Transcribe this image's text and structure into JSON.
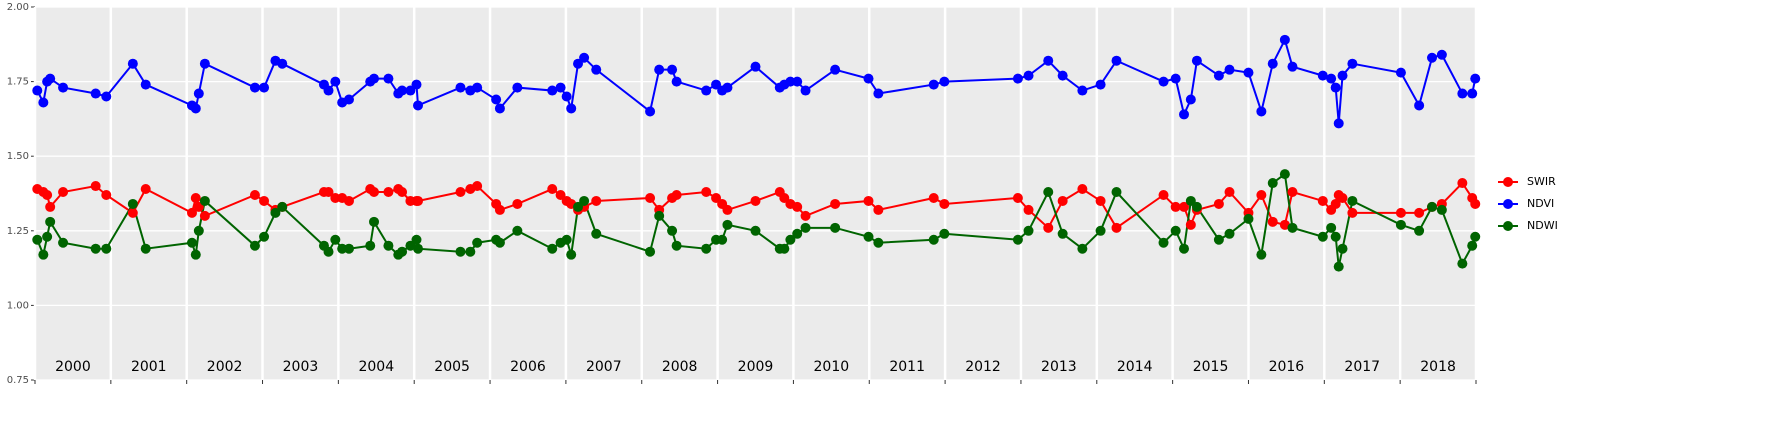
{
  "chart_data": {
    "type": "line",
    "x": [
      2000.03,
      2000.11,
      2000.16,
      2000.2,
      2000.37,
      2000.8,
      2000.94,
      2001.29,
      2001.46,
      2002.07,
      2002.12,
      2002.16,
      2002.24,
      2002.9,
      2003.02,
      2003.17,
      2003.26,
      2003.81,
      2003.87,
      2003.96,
      2004.05,
      2004.14,
      2004.42,
      2004.47,
      2004.66,
      2004.79,
      2004.84,
      2004.95,
      2005.03,
      2005.05,
      2005.61,
      2005.74,
      2005.83,
      2006.08,
      2006.13,
      2006.36,
      2006.82,
      2006.93,
      2007.01,
      2007.07,
      2007.16,
      2007.24,
      2007.4,
      2008.11,
      2008.23,
      2008.4,
      2008.46,
      2008.85,
      2008.98,
      2009.06,
      2009.13,
      2009.5,
      2009.82,
      2009.88,
      2009.96,
      2010.05,
      2010.16,
      2010.55,
      2010.99,
      2011.12,
      2011.85,
      2011.99,
      2012.96,
      2013.1,
      2013.36,
      2013.55,
      2013.81,
      2014.05,
      2014.26,
      2014.88,
      2015.04,
      2015.15,
      2015.24,
      2015.32,
      2015.61,
      2015.75,
      2016.0,
      2016.17,
      2016.32,
      2016.48,
      2016.58,
      2016.98,
      2017.09,
      2017.15,
      2017.19,
      2017.24,
      2017.37,
      2018.01,
      2018.25,
      2018.42,
      2018.55,
      2018.82,
      2018.95,
      2018.99
    ],
    "series": [
      {
        "name": "SWIR",
        "color": "#ff0000",
        "values": [
          1.39,
          1.38,
          1.37,
          1.33,
          1.38,
          1.4,
          1.37,
          1.31,
          1.39,
          1.31,
          1.36,
          1.33,
          1.3,
          1.37,
          1.35,
          1.32,
          1.33,
          1.38,
          1.38,
          1.36,
          1.36,
          1.35,
          1.39,
          1.38,
          1.38,
          1.39,
          1.38,
          1.35,
          1.35,
          1.35,
          1.38,
          1.39,
          1.4,
          1.34,
          1.32,
          1.34,
          1.39,
          1.37,
          1.35,
          1.34,
          1.32,
          1.33,
          1.35,
          1.36,
          1.32,
          1.36,
          1.37,
          1.38,
          1.36,
          1.34,
          1.32,
          1.35,
          1.38,
          1.36,
          1.34,
          1.33,
          1.3,
          1.34,
          1.35,
          1.32,
          1.36,
          1.34,
          1.36,
          1.32,
          1.26,
          1.35,
          1.39,
          1.35,
          1.26,
          1.37,
          1.33,
          1.33,
          1.27,
          1.32,
          1.34,
          1.38,
          1.31,
          1.37,
          1.28,
          1.27,
          1.38,
          1.35,
          1.32,
          1.34,
          1.37,
          1.36,
          1.31,
          1.31,
          1.31,
          1.33,
          1.34,
          1.41,
          1.36,
          1.34
        ]
      },
      {
        "name": "NDVI",
        "color": "#0000ff",
        "values": [
          1.72,
          1.68,
          1.75,
          1.76,
          1.73,
          1.71,
          1.7,
          1.81,
          1.74,
          1.67,
          1.66,
          1.71,
          1.81,
          1.73,
          1.73,
          1.82,
          1.81,
          1.74,
          1.72,
          1.75,
          1.68,
          1.69,
          1.75,
          1.76,
          1.76,
          1.71,
          1.72,
          1.72,
          1.74,
          1.67,
          1.73,
          1.72,
          1.73,
          1.69,
          1.66,
          1.73,
          1.72,
          1.73,
          1.7,
          1.66,
          1.81,
          1.83,
          1.79,
          1.65,
          1.79,
          1.79,
          1.75,
          1.72,
          1.74,
          1.72,
          1.73,
          1.8,
          1.73,
          1.74,
          1.75,
          1.75,
          1.72,
          1.79,
          1.76,
          1.71,
          1.74,
          1.75,
          1.76,
          1.77,
          1.82,
          1.77,
          1.72,
          1.74,
          1.82,
          1.75,
          1.76,
          1.64,
          1.69,
          1.82,
          1.77,
          1.79,
          1.78,
          1.65,
          1.81,
          1.89,
          1.8,
          1.77,
          1.76,
          1.73,
          1.61,
          1.77,
          1.81,
          1.78,
          1.67,
          1.83,
          1.84,
          1.71,
          1.71,
          1.76
        ]
      },
      {
        "name": "NDWI",
        "color": "#006400",
        "values": [
          1.22,
          1.17,
          1.23,
          1.28,
          1.21,
          1.19,
          1.19,
          1.34,
          1.19,
          1.21,
          1.17,
          1.25,
          1.35,
          1.2,
          1.23,
          1.31,
          1.33,
          1.2,
          1.18,
          1.22,
          1.19,
          1.19,
          1.2,
          1.28,
          1.2,
          1.17,
          1.18,
          1.2,
          1.22,
          1.19,
          1.18,
          1.18,
          1.21,
          1.22,
          1.21,
          1.25,
          1.19,
          1.21,
          1.22,
          1.17,
          1.33,
          1.35,
          1.24,
          1.18,
          1.3,
          1.25,
          1.2,
          1.19,
          1.22,
          1.22,
          1.27,
          1.25,
          1.19,
          1.19,
          1.22,
          1.24,
          1.26,
          1.26,
          1.23,
          1.21,
          1.22,
          1.24,
          1.22,
          1.25,
          1.38,
          1.24,
          1.19,
          1.25,
          1.38,
          1.21,
          1.25,
          1.19,
          1.35,
          1.33,
          1.22,
          1.24,
          1.29,
          1.17,
          1.41,
          1.44,
          1.26,
          1.23,
          1.26,
          1.23,
          1.13,
          1.19,
          1.35,
          1.27,
          1.25,
          1.33,
          1.32,
          1.14,
          1.2,
          1.23
        ]
      }
    ],
    "xlim": [
      2000,
      2019
    ],
    "xticks": [
      2000,
      2001,
      2002,
      2003,
      2004,
      2005,
      2006,
      2007,
      2008,
      2009,
      2010,
      2011,
      2012,
      2013,
      2014,
      2015,
      2016,
      2017,
      2018,
      2019
    ],
    "year_labels": [
      "2000",
      "2001",
      "2002",
      "2003",
      "2004",
      "2005",
      "2006",
      "2007",
      "2008",
      "2009",
      "2010",
      "2011",
      "2012",
      "2013",
      "2014",
      "2015",
      "2016",
      "2017",
      "2018"
    ],
    "ylim": [
      0.75,
      2.0
    ],
    "yticks": [
      {
        "value": 0.75,
        "label": "0.75"
      },
      {
        "value": 1.0,
        "label": "1.00"
      },
      {
        "value": 1.25,
        "label": "1.25"
      },
      {
        "value": 1.5,
        "label": "1.50"
      },
      {
        "value": 1.75,
        "label": "1.75"
      },
      {
        "value": 2.0,
        "label": "2.00"
      }
    ],
    "grid": true,
    "legend": "right"
  }
}
